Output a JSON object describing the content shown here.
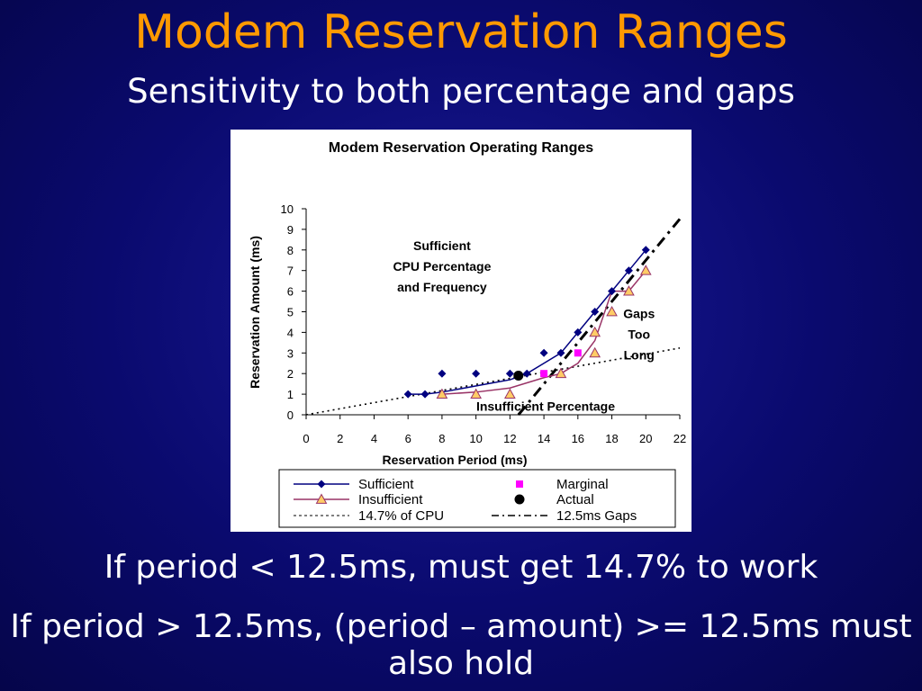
{
  "slide": {
    "title": "Modem Reservation Ranges",
    "subtitle": "Sensitivity to both percentage and gaps",
    "bullets": [
      "If period < 12.5ms, must get 14.7% to work",
      "If period > 12.5ms, (period – amount) >= 12.5ms must also hold"
    ]
  },
  "chart_data": {
    "type": "line",
    "title": "Modem Reservation Operating Ranges",
    "xlabel": "Reservation Period (ms)",
    "ylabel": "Reservation Amount (ms)",
    "xlim": [
      0,
      22
    ],
    "ylim": [
      0,
      10
    ],
    "xticks": [
      0,
      2,
      4,
      6,
      8,
      10,
      12,
      14,
      16,
      18,
      20,
      22
    ],
    "yticks": [
      0,
      1,
      2,
      3,
      4,
      5,
      6,
      7,
      8,
      9,
      10
    ],
    "grid": false,
    "legend_position": "bottom",
    "series": [
      {
        "name": "Sufficient",
        "style": "line-markers",
        "marker": "diamond",
        "color": "#000080",
        "line_points": [
          [
            6,
            1
          ],
          [
            7,
            1
          ],
          [
            8,
            1.1
          ],
          [
            12,
            1.7
          ],
          [
            13,
            2
          ],
          [
            14,
            2.5
          ],
          [
            15,
            3
          ],
          [
            16,
            4
          ],
          [
            17,
            5
          ],
          [
            18,
            6
          ],
          [
            19,
            7
          ],
          [
            20,
            8
          ]
        ],
        "points": [
          [
            6,
            1
          ],
          [
            7,
            1
          ],
          [
            8,
            2
          ],
          [
            10,
            2
          ],
          [
            12,
            2
          ],
          [
            13,
            2
          ],
          [
            14,
            3
          ],
          [
            15,
            3
          ],
          [
            16,
            4
          ],
          [
            17,
            5
          ],
          [
            18,
            6
          ],
          [
            19,
            7
          ],
          [
            20,
            8
          ]
        ]
      },
      {
        "name": "Insufficient",
        "style": "line-markers",
        "marker": "triangle",
        "color": "#993366",
        "marker_fill": "#ffcc66",
        "line_points": [
          [
            8,
            1
          ],
          [
            10,
            1.1
          ],
          [
            12,
            1.3
          ],
          [
            14,
            1.8
          ],
          [
            15,
            2
          ],
          [
            16,
            2.5
          ],
          [
            17,
            3.6
          ],
          [
            18,
            6
          ],
          [
            19,
            6
          ],
          [
            20,
            7
          ]
        ],
        "points": [
          [
            8,
            1
          ],
          [
            10,
            1
          ],
          [
            12,
            1
          ],
          [
            15,
            2
          ],
          [
            17,
            3
          ],
          [
            17,
            4
          ],
          [
            18,
            5
          ],
          [
            19,
            6
          ],
          [
            20,
            7
          ]
        ]
      },
      {
        "name": "Marginal",
        "style": "markers",
        "marker": "square",
        "color": "#ff00ff",
        "points": [
          [
            14,
            2
          ],
          [
            16,
            3
          ]
        ]
      },
      {
        "name": "Actual",
        "style": "markers",
        "marker": "circle",
        "color": "#000000",
        "points": [
          [
            12.5,
            1.9
          ]
        ]
      },
      {
        "name": "14.7% of CPU",
        "style": "dotted-line",
        "color": "#000000",
        "points": [
          [
            0,
            0
          ],
          [
            22,
            3.24
          ]
        ]
      },
      {
        "name": "12.5ms Gaps",
        "style": "dash-dot-line",
        "color": "#000000",
        "points": [
          [
            12.5,
            0
          ],
          [
            22,
            9.5
          ]
        ]
      }
    ],
    "annotations": [
      {
        "lines": [
          "Sufficient",
          "CPU Percentage",
          "and Frequency"
        ],
        "x": 8,
        "y": 8
      },
      {
        "lines": [
          "Gaps",
          "Too",
          "Long"
        ],
        "x": 19.6,
        "y": 4.7
      },
      {
        "lines": [
          "Insufficient Percentage"
        ],
        "x": 14.1,
        "y": 0.2
      }
    ]
  }
}
